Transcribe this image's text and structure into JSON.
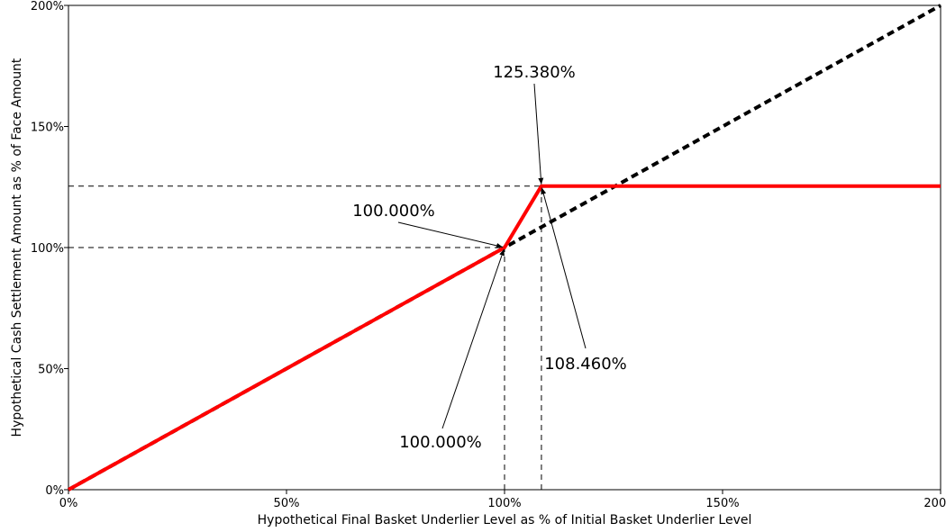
{
  "chart_data": {
    "type": "line",
    "title": "",
    "xlabel": "Hypothetical Final Basket Underlier Level as % of Initial Basket Underlier Level",
    "ylabel": "Hypothetical Cash Settlement Amount as % of Face Amount",
    "xlim": [
      0,
      200
    ],
    "ylim": [
      0,
      200
    ],
    "x_ticks": [
      {
        "value": 0,
        "label": "0%"
      },
      {
        "value": 50,
        "label": "50%"
      },
      {
        "value": 100,
        "label": "100%"
      },
      {
        "value": 150,
        "label": "150%"
      },
      {
        "value": 200,
        "label": "200%"
      }
    ],
    "y_ticks": [
      {
        "value": 0,
        "label": "0%"
      },
      {
        "value": 50,
        "label": "50%"
      },
      {
        "value": 100,
        "label": "100%"
      },
      {
        "value": 150,
        "label": "150%"
      },
      {
        "value": 200,
        "label": "200%"
      }
    ],
    "grid": false,
    "series": [
      {
        "role": "payoff",
        "color": "#ff0000",
        "style": "solid",
        "x": [
          0,
          100,
          108.46,
          200
        ],
        "y": [
          0,
          100,
          125.38,
          125.38
        ]
      },
      {
        "role": "underlier",
        "color": "#000000",
        "style": "dashed",
        "x": [
          0,
          200
        ],
        "y": [
          0,
          200
        ]
      }
    ],
    "reference_lines": [
      {
        "orientation": "horizontal",
        "value": 100,
        "from": 0,
        "to": 100
      },
      {
        "orientation": "horizontal",
        "value": 125.38,
        "from": 0,
        "to": 108.46
      },
      {
        "orientation": "vertical",
        "value": 100,
        "from": 0,
        "to": 100
      },
      {
        "orientation": "vertical",
        "value": 108.46,
        "from": 0,
        "to": 125.38
      }
    ],
    "annotations": [
      {
        "text": "125.380%",
        "target": [
          108.46,
          125.38
        ]
      },
      {
        "text": "100.000%",
        "target": [
          100,
          100
        ]
      },
      {
        "text": "108.460%",
        "target": [
          108.46,
          125.38
        ]
      },
      {
        "text": "100.000%",
        "target": [
          100,
          100
        ]
      }
    ]
  }
}
